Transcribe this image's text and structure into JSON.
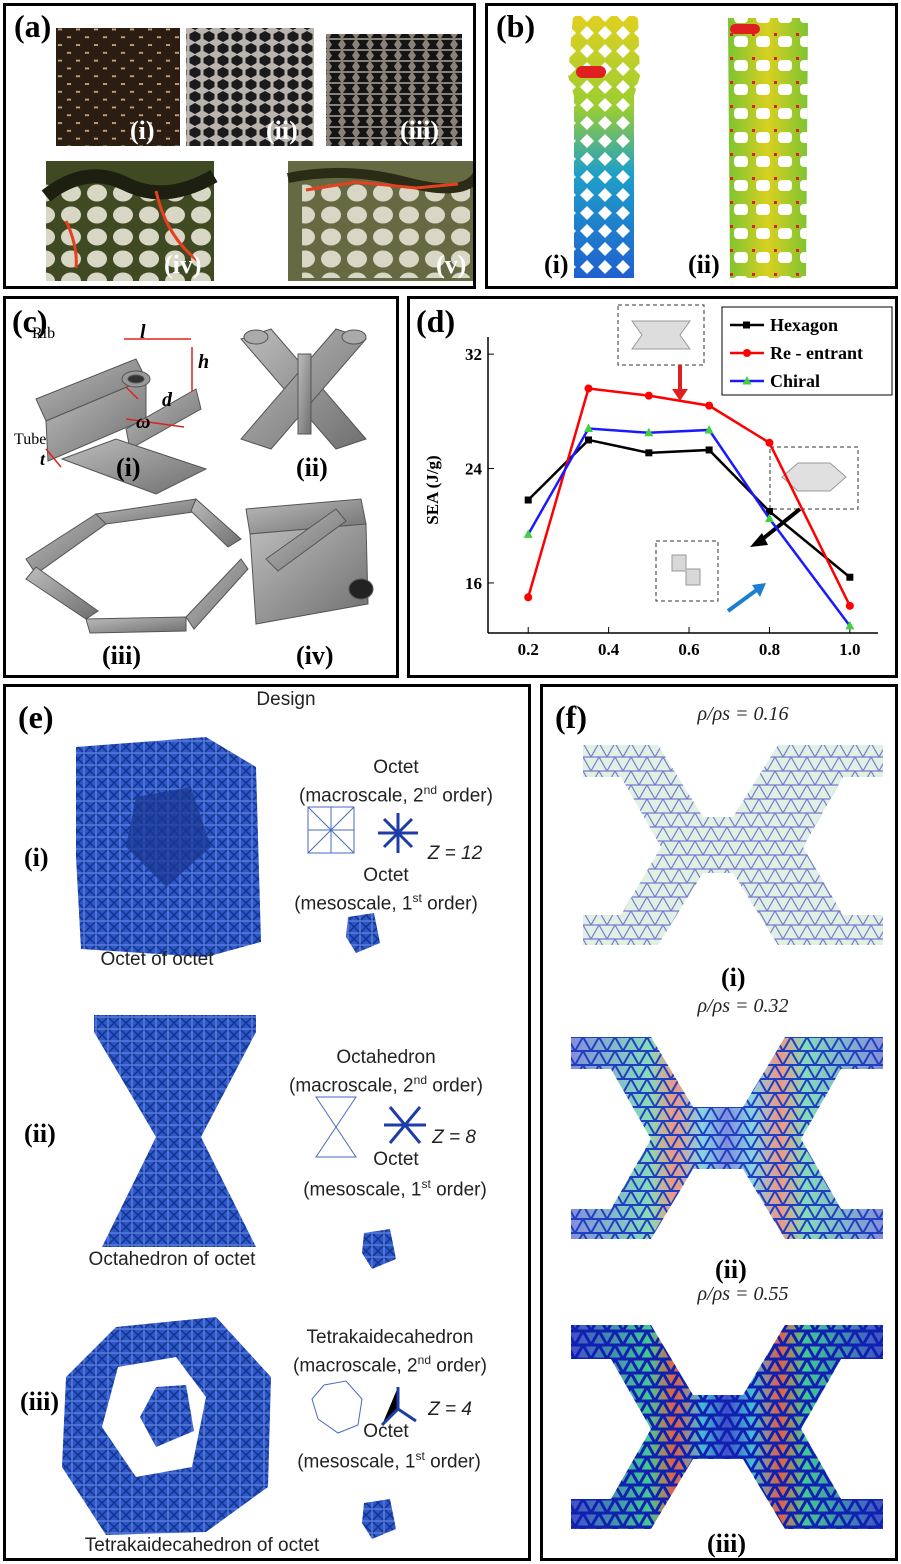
{
  "panels": {
    "a": {
      "label": "(a)",
      "subs": [
        "(i)",
        "(ii)",
        "(iii)",
        "(iv)",
        "(v)"
      ]
    },
    "b": {
      "label": "(b)",
      "subs": [
        "(i)",
        "(ii)"
      ]
    },
    "c": {
      "label": "(c)",
      "subs": [
        "(i)",
        "(ii)",
        "(iii)",
        "(iv)"
      ],
      "annotations": {
        "rib": "Rib",
        "tube": "Tube",
        "l": "l",
        "h": "h",
        "d": "d",
        "w": "ω",
        "t": "t"
      }
    },
    "d": {
      "label": "(d)"
    },
    "e": {
      "label": "(e)",
      "title": "Design",
      "rows": [
        {
          "sub": "(i)",
          "caption": "Octet of octet",
          "macro_name": "Octet",
          "macro_scale": "(macroscale, 2",
          "macro_sup": "nd",
          "macro_end": " order)",
          "z": "Z = 12",
          "meso_name": "Octet",
          "meso_scale": "(mesoscale, 1",
          "meso_sup": "st",
          "meso_end": " order)"
        },
        {
          "sub": "(ii)",
          "caption": "Octahedron of octet",
          "macro_name": "Octahedron",
          "macro_scale": "(macroscale, 2",
          "macro_sup": "nd",
          "macro_end": " order)",
          "z": "Z = 8",
          "meso_name": "Octet",
          "meso_scale": "(mesoscale, 1",
          "meso_sup": "st",
          "meso_end": " order)"
        },
        {
          "sub": "(iii)",
          "caption": "Tetrakaidecahedron of octet",
          "macro_name": "Tetrakaidecahedron",
          "macro_scale": "(macroscale, 2",
          "macro_sup": "nd",
          "macro_end": " order)",
          "z": "Z = 4",
          "meso_name": "Octet",
          "meso_scale": "(mesoscale, 1",
          "meso_sup": "st",
          "meso_end": " order)"
        }
      ]
    },
    "f": {
      "label": "(f)",
      "rows": [
        {
          "density": "ρ/ρs = 0.16",
          "sub": "(i)"
        },
        {
          "density": "ρ/ρs = 0.32",
          "sub": "(ii)"
        },
        {
          "density": "ρ/ρs = 0.55",
          "sub": "(iii)"
        }
      ]
    }
  },
  "chart_data": {
    "type": "line",
    "title": "",
    "xlabel": "",
    "ylabel": "SEA (J/g)",
    "x": [
      0.2,
      0.35,
      0.5,
      0.65,
      0.8,
      1.0
    ],
    "xlim": [
      0.1,
      1.07
    ],
    "ylim": [
      12.5,
      32.5
    ],
    "xticks": [
      "0.2",
      "0.4",
      "0.6",
      "0.8",
      "1.0"
    ],
    "yticks": [
      "16",
      "24",
      "32"
    ],
    "legend_position": "top-right",
    "series": [
      {
        "name": "Hexagon",
        "color": "#000000",
        "marker": "square",
        "values": [
          21.8,
          26.0,
          25.1,
          25.3,
          21.0,
          16.4
        ]
      },
      {
        "name": "Re - entrant",
        "color": "#ff0000",
        "marker": "circle",
        "values": [
          15.0,
          29.6,
          29.1,
          28.4,
          25.8,
          14.4
        ]
      },
      {
        "name": "Chiral",
        "color": "#1a1aff",
        "marker": "triangle",
        "values": [
          19.4,
          26.8,
          26.5,
          26.7,
          20.5,
          13.0
        ]
      }
    ]
  }
}
